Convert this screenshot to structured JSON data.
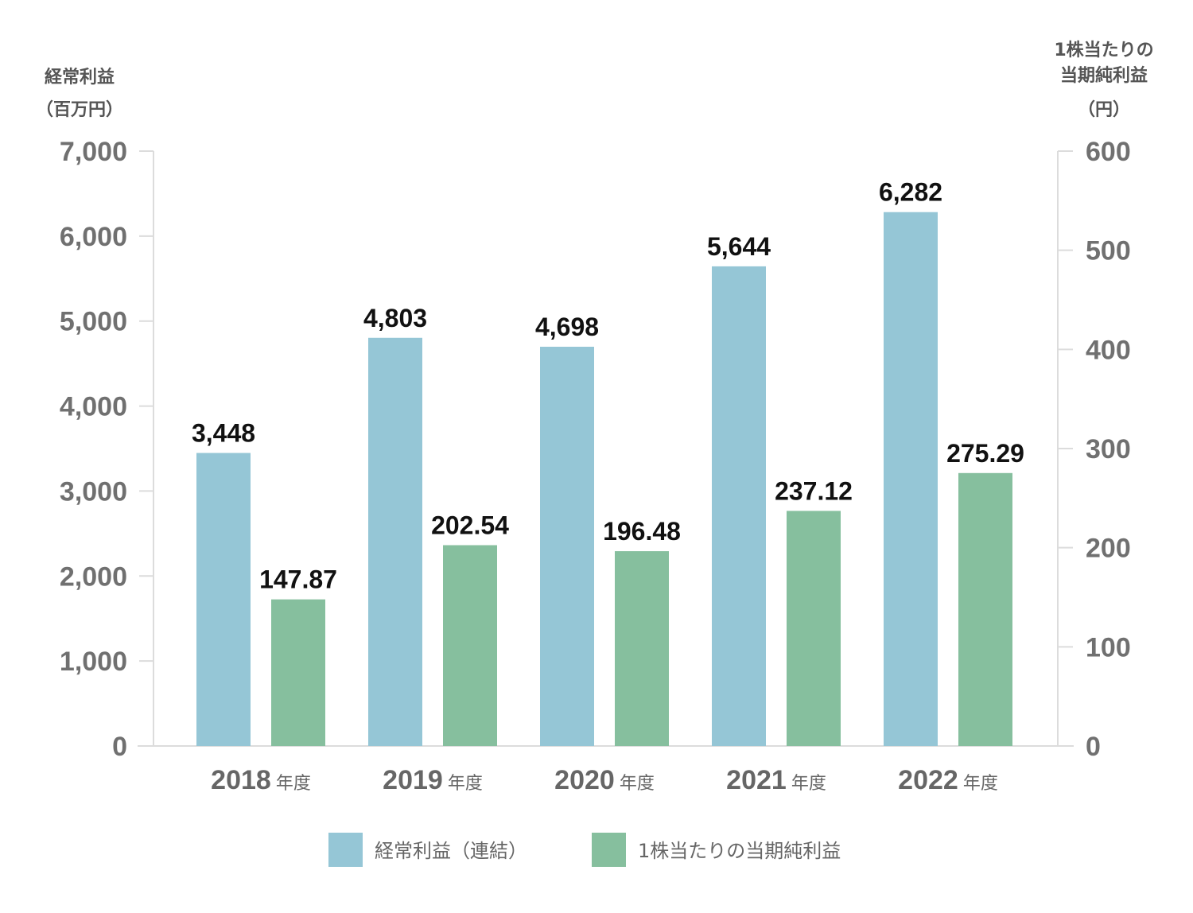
{
  "chart_data": {
    "type": "bar",
    "categories": [
      {
        "year": "2018",
        "unit": "年度"
      },
      {
        "year": "2019",
        "unit": "年度"
      },
      {
        "year": "2020",
        "unit": "年度"
      },
      {
        "year": "2021",
        "unit": "年度"
      },
      {
        "year": "2022",
        "unit": "年度"
      }
    ],
    "left_axis": {
      "title_lines": [
        "経常利益",
        "（百万円）"
      ],
      "min": 0,
      "max": 7000,
      "ticks": [
        "0",
        "1,000",
        "2,000",
        "3,000",
        "4,000",
        "5,000",
        "6,000",
        "7,000"
      ]
    },
    "right_axis": {
      "title_lines": [
        "1株当たりの",
        "当期純利益",
        "（円）"
      ],
      "min": 0,
      "max": 600,
      "ticks": [
        "0",
        "100",
        "200",
        "300",
        "400",
        "500",
        "600"
      ]
    },
    "series": [
      {
        "name": "経常利益（連結）",
        "axis": "left",
        "color": "#95c6d6",
        "values": [
          3448,
          4803,
          4698,
          5644,
          6282
        ],
        "labels": [
          "3,448",
          "4,803",
          "4,698",
          "5,644",
          "6,282"
        ]
      },
      {
        "name": "1株当たりの当期純利益",
        "axis": "right",
        "color": "#86bf9e",
        "values": [
          147.87,
          202.54,
          196.48,
          237.12,
          275.29
        ],
        "labels": [
          "147.87",
          "202.54",
          "196.48",
          "237.12",
          "275.29"
        ]
      }
    ],
    "grid": false,
    "legend_position": "bottom-center"
  }
}
